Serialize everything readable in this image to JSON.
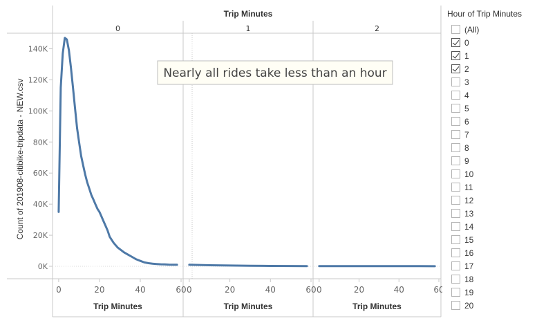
{
  "chart_data": {
    "type": "line",
    "title": "Trip Minutes",
    "ylabel": "Count of 201908-citibike-tripdata - NEW.csv",
    "xlabel": "Trip Minutes",
    "ylim": [
      -8000,
      150000
    ],
    "yticks": [
      0,
      20000,
      40000,
      60000,
      80000,
      100000,
      120000,
      140000
    ],
    "ytick_labels": [
      "0K",
      "20K",
      "40K",
      "60K",
      "80K",
      "100K",
      "120K",
      "140K"
    ],
    "xlim": [
      -2,
      60
    ],
    "xticks": [
      0,
      20,
      40,
      60
    ],
    "xtick_labels": [
      "0",
      "20",
      "40",
      "60"
    ],
    "annotation": "Nearly all rides take less than an hour",
    "grid": false,
    "panels": [
      {
        "hour": "0",
        "x": [
          0,
          1,
          2,
          3,
          4,
          5,
          6,
          7,
          8,
          9,
          10,
          11,
          12,
          13,
          14,
          15,
          16,
          17,
          18,
          19,
          20,
          21,
          22,
          23,
          24,
          25,
          26,
          27,
          28,
          29,
          30,
          32,
          34,
          36,
          38,
          40,
          42,
          44,
          46,
          48,
          50,
          52,
          54,
          56,
          58
        ],
        "y": [
          35000,
          115000,
          137000,
          147000,
          146000,
          139000,
          128000,
          115000,
          102000,
          89000,
          80000,
          71000,
          65000,
          59000,
          54000,
          50000,
          46000,
          43000,
          40000,
          37000,
          35000,
          32000,
          29000,
          26000,
          23000,
          19000,
          17000,
          15000,
          13500,
          12000,
          11000,
          9000,
          7500,
          6000,
          4500,
          3500,
          2500,
          2000,
          1700,
          1500,
          1300,
          1200,
          1100,
          1050,
          1000
        ]
      },
      {
        "hour": "1",
        "x": [
          0,
          10,
          20,
          30,
          40,
          50,
          58
        ],
        "y": [
          1000,
          700,
          500,
          350,
          250,
          180,
          150
        ]
      },
      {
        "hour": "2",
        "x": [
          0,
          10,
          20,
          30,
          40,
          50,
          58
        ],
        "y": [
          150,
          130,
          110,
          100,
          90,
          80,
          70
        ]
      }
    ]
  },
  "filter": {
    "title": "Hour of Trip Minutes",
    "items": [
      {
        "label": "(All)",
        "checked": false
      },
      {
        "label": "0",
        "checked": true
      },
      {
        "label": "1",
        "checked": true
      },
      {
        "label": "2",
        "checked": true
      },
      {
        "label": "3",
        "checked": false
      },
      {
        "label": "4",
        "checked": false
      },
      {
        "label": "5",
        "checked": false
      },
      {
        "label": "6",
        "checked": false
      },
      {
        "label": "7",
        "checked": false
      },
      {
        "label": "8",
        "checked": false
      },
      {
        "label": "9",
        "checked": false
      },
      {
        "label": "10",
        "checked": false
      },
      {
        "label": "11",
        "checked": false
      },
      {
        "label": "12",
        "checked": false
      },
      {
        "label": "13",
        "checked": false
      },
      {
        "label": "14",
        "checked": false
      },
      {
        "label": "15",
        "checked": false
      },
      {
        "label": "16",
        "checked": false
      },
      {
        "label": "17",
        "checked": false
      },
      {
        "label": "18",
        "checked": false
      },
      {
        "label": "19",
        "checked": false
      },
      {
        "label": "20",
        "checked": false
      }
    ]
  },
  "colors": {
    "line": "#4e79a7",
    "axis": "#c8c8c8",
    "text": "#333333",
    "annotation_bg": "#fffef5"
  }
}
